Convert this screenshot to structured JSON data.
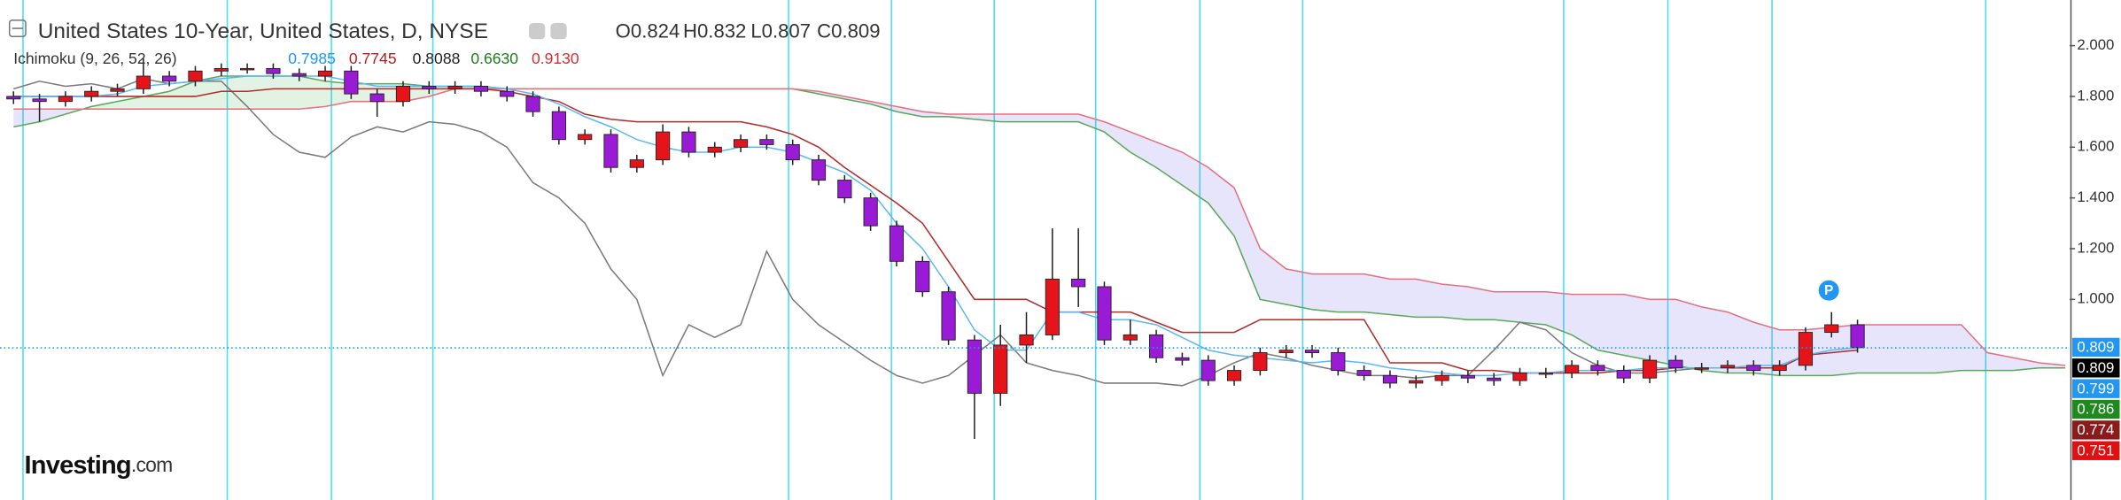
{
  "chart_data": {
    "type": "candlestick",
    "title": "United States 10-Year, United States, D, NYSE",
    "ohlc": [
      {
        "label": "O",
        "value": 0.824
      },
      {
        "label": "H",
        "value": 0.832
      },
      {
        "label": "L",
        "value": 0.807
      },
      {
        "label": "C",
        "value": 0.809
      }
    ],
    "indicator": "Ichimoku (9, 26, 52, 26)",
    "indicator_values": [
      {
        "value": 0.7985,
        "color": "#2196f3"
      },
      {
        "value": 0.7745,
        "color": "#b71c1c"
      },
      {
        "value": 0.8088,
        "color": "#222222"
      },
      {
        "value": {
          "value": 0.663,
          "label": "0.6630"
        },
        "color": "#1b7e1b"
      },
      {
        "value": {
          "value": 0.913,
          "label": "0.9130"
        },
        "color": "#d32f2f"
      }
    ],
    "logo": {
      "main": "Investing",
      "suffix": ".com"
    },
    "marker": "P",
    "ylim": [
      0.22,
      2.18
    ],
    "yticks": [
      {
        "value": 2,
        "label": "2.000"
      },
      {
        "value": 1.8,
        "label": "1.800"
      },
      {
        "value": 1.6,
        "label": "1.600"
      },
      {
        "value": 1.4,
        "label": "1.400"
      },
      {
        "value": 1.2,
        "label": "1.200"
      },
      {
        "value": 1,
        "label": "1.000"
      }
    ],
    "colors": {
      "up": "#e5141b",
      "down": "#9a1bd6"
    },
    "candles": {
      "open": [
        1.8,
        1.79,
        1.78,
        1.8,
        1.82,
        1.83,
        1.88,
        1.86,
        1.9,
        1.91,
        1.91,
        1.89,
        1.88,
        1.9,
        1.81,
        1.78,
        1.84,
        1.83,
        1.84,
        1.82,
        1.8,
        1.74,
        1.63,
        1.65,
        1.52,
        1.55,
        1.66,
        1.58,
        1.6,
        1.63,
        1.61,
        1.55,
        1.47,
        1.4,
        1.29,
        1.15,
        1.03,
        0.84,
        0.63,
        0.82,
        0.86,
        1.08,
        1.05,
        0.84,
        0.86,
        0.77,
        0.76,
        0.68,
        0.72,
        0.79,
        0.8,
        0.79,
        0.72,
        0.7,
        0.67,
        0.68,
        0.7,
        0.69,
        0.68,
        0.71,
        0.71,
        0.74,
        0.72,
        0.69,
        0.76,
        0.73,
        0.73,
        0.74,
        0.72,
        0.74,
        0.87,
        0.9
      ],
      "high": [
        1.82,
        1.81,
        1.82,
        1.84,
        1.85,
        1.95,
        1.9,
        1.92,
        1.93,
        1.93,
        1.93,
        1.91,
        1.92,
        1.92,
        1.83,
        1.86,
        1.86,
        1.86,
        1.86,
        1.84,
        1.82,
        1.76,
        1.67,
        1.67,
        1.57,
        1.69,
        1.68,
        1.62,
        1.65,
        1.65,
        1.63,
        1.57,
        1.49,
        1.42,
        1.31,
        1.17,
        1.05,
        0.86,
        0.9,
        0.95,
        1.28,
        1.28,
        1.07,
        0.92,
        0.88,
        0.79,
        0.78,
        0.74,
        0.81,
        0.82,
        0.82,
        0.81,
        0.74,
        0.72,
        0.7,
        0.72,
        0.72,
        0.71,
        0.73,
        0.73,
        0.76,
        0.76,
        0.74,
        0.78,
        0.78,
        0.75,
        0.76,
        0.76,
        0.76,
        0.89,
        0.95,
        0.92
      ],
      "low": [
        1.77,
        1.7,
        1.76,
        1.78,
        1.8,
        1.81,
        1.84,
        1.84,
        1.88,
        1.89,
        1.87,
        1.86,
        1.86,
        1.79,
        1.72,
        1.76,
        1.81,
        1.81,
        1.8,
        1.78,
        1.72,
        1.61,
        1.61,
        1.5,
        1.5,
        1.53,
        1.56,
        1.56,
        1.58,
        1.59,
        1.53,
        1.45,
        1.38,
        1.27,
        1.13,
        1.01,
        0.82,
        0.45,
        0.58,
        0.75,
        0.84,
        0.97,
        0.82,
        0.82,
        0.75,
        0.74,
        0.66,
        0.66,
        0.7,
        0.77,
        0.77,
        0.7,
        0.68,
        0.65,
        0.65,
        0.66,
        0.67,
        0.66,
        0.66,
        0.69,
        0.69,
        0.7,
        0.67,
        0.67,
        0.71,
        0.71,
        0.71,
        0.7,
        0.7,
        0.72,
        0.85,
        0.79
      ],
      "close": [
        1.79,
        1.78,
        1.8,
        1.82,
        1.83,
        1.88,
        1.86,
        1.9,
        1.91,
        1.91,
        1.89,
        1.88,
        1.9,
        1.81,
        1.78,
        1.84,
        1.83,
        1.84,
        1.82,
        1.8,
        1.74,
        1.63,
        1.65,
        1.52,
        1.55,
        1.66,
        1.58,
        1.6,
        1.63,
        1.61,
        1.55,
        1.47,
        1.4,
        1.29,
        1.15,
        1.03,
        0.84,
        0.63,
        0.82,
        0.86,
        1.08,
        1.05,
        0.84,
        0.86,
        0.77,
        0.76,
        0.68,
        0.72,
        0.79,
        0.8,
        0.79,
        0.72,
        0.7,
        0.67,
        0.68,
        0.7,
        0.69,
        0.68,
        0.71,
        0.71,
        0.74,
        0.72,
        0.69,
        0.76,
        0.73,
        0.73,
        0.74,
        0.72,
        0.74,
        0.87,
        0.9,
        0.81
      ]
    },
    "cloud_colors": [
      "rgba(76,175,80,0.16)",
      "rgba(110,100,235,0.17)"
    ],
    "cloud": [
      {
        "color": "#5aa85a",
        "values": [
          1.68,
          1.7,
          1.73,
          1.76,
          1.78,
          1.8,
          1.82,
          1.86,
          1.88,
          1.88,
          1.88,
          1.88,
          1.86,
          1.85,
          1.85,
          1.85,
          1.84,
          1.84,
          1.84,
          1.83,
          1.83,
          1.83,
          1.83,
          1.83,
          1.83,
          1.83,
          1.83,
          1.83,
          1.83,
          1.83,
          1.83,
          1.81,
          1.79,
          1.77,
          1.74,
          1.72,
          1.72,
          1.71,
          1.7,
          1.7,
          1.7,
          1.7,
          1.66,
          1.58,
          1.52,
          1.45,
          1.38,
          1.25,
          1.0,
          0.98,
          0.96,
          0.95,
          0.95,
          0.94,
          0.93,
          0.93,
          0.92,
          0.92,
          0.91,
          0.9,
          0.86,
          0.8,
          0.78,
          0.76,
          0.74,
          0.72,
          0.71,
          0.71,
          0.7,
          0.7,
          0.7,
          0.71,
          0.71,
          0.71,
          0.71,
          0.72,
          0.72,
          0.72,
          0.73,
          0.73
        ]
      },
      {
        "color": "#e5707e",
        "values": [
          1.75,
          1.75,
          1.75,
          1.75,
          1.75,
          1.75,
          1.75,
          1.75,
          1.75,
          1.75,
          1.75,
          1.75,
          1.76,
          1.78,
          1.78,
          1.78,
          1.8,
          1.83,
          1.83,
          1.83,
          1.83,
          1.83,
          1.83,
          1.83,
          1.83,
          1.83,
          1.83,
          1.83,
          1.83,
          1.83,
          1.83,
          1.82,
          1.8,
          1.78,
          1.76,
          1.74,
          1.73,
          1.73,
          1.73,
          1.73,
          1.73,
          1.73,
          1.7,
          1.66,
          1.62,
          1.58,
          1.52,
          1.44,
          1.2,
          1.12,
          1.1,
          1.1,
          1.1,
          1.08,
          1.08,
          1.06,
          1.05,
          1.03,
          1.03,
          1.03,
          1.02,
          1.02,
          1.02,
          1.0,
          1.0,
          0.97,
          0.95,
          0.91,
          0.88,
          0.88,
          0.89,
          0.9,
          0.9,
          0.9,
          0.9,
          0.9,
          0.79,
          0.77,
          0.75,
          0.74
        ]
      }
    ],
    "lines": [
      {
        "color": "#7a7a7a",
        "values": [
          1.83,
          1.86,
          1.84,
          1.85,
          1.83,
          1.87,
          1.85,
          1.86,
          1.86,
          1.76,
          1.65,
          1.58,
          1.56,
          1.64,
          1.68,
          1.66,
          1.7,
          1.69,
          1.66,
          1.6,
          1.46,
          1.4,
          1.3,
          1.12,
          1.0,
          0.7,
          0.9,
          0.85,
          0.9,
          1.19,
          1.0,
          0.9,
          0.83,
          0.76,
          0.7,
          0.67,
          0.7,
          0.78,
          0.86,
          0.75,
          0.72,
          0.7,
          0.67,
          0.67,
          0.67,
          0.66,
          0.7,
          0.75,
          0.79,
          0.77,
          0.74,
          0.72,
          0.7,
          0.7,
          0.69,
          0.7,
          0.7,
          0.8,
          0.91,
          0.88,
          0.79,
          0.74,
          0.71,
          0.71,
          0.72,
          0.73,
          0.73,
          0.73,
          null,
          null,
          null,
          null
        ]
      },
      {
        "color": "#b22a2a",
        "values": [
          1.8,
          1.8,
          1.8,
          1.8,
          1.8,
          1.8,
          1.8,
          1.8,
          1.82,
          1.82,
          1.83,
          1.83,
          1.83,
          1.83,
          1.83,
          1.83,
          1.83,
          1.83,
          1.83,
          1.82,
          1.8,
          1.78,
          1.73,
          1.71,
          1.7,
          1.7,
          1.7,
          1.7,
          1.7,
          1.68,
          1.65,
          1.6,
          1.52,
          1.45,
          1.38,
          1.3,
          1.15,
          1.0,
          1.0,
          1.0,
          0.95,
          0.95,
          0.95,
          0.95,
          0.91,
          0.87,
          0.87,
          0.87,
          0.92,
          0.92,
          0.92,
          0.92,
          0.92,
          0.75,
          0.75,
          0.75,
          0.72,
          0.72,
          0.71,
          0.71,
          0.71,
          0.71,
          0.72,
          0.72,
          0.73,
          0.73,
          0.73,
          0.73,
          0.73,
          0.78,
          0.79,
          0.8
        ]
      },
      {
        "color": "#5bb8f5",
        "values": [
          1.8,
          1.8,
          1.8,
          1.8,
          1.81,
          1.84,
          1.85,
          1.86,
          1.87,
          1.88,
          1.88,
          1.88,
          1.88,
          1.86,
          1.84,
          1.84,
          1.84,
          1.84,
          1.84,
          1.83,
          1.81,
          1.77,
          1.72,
          1.68,
          1.63,
          1.6,
          1.58,
          1.58,
          1.6,
          1.6,
          1.58,
          1.54,
          1.5,
          1.43,
          1.3,
          1.2,
          1.05,
          0.88,
          0.8,
          0.8,
          0.95,
          0.95,
          0.92,
          0.92,
          0.9,
          0.85,
          0.8,
          0.78,
          0.77,
          0.76,
          0.75,
          0.76,
          0.75,
          0.73,
          0.72,
          0.71,
          0.7,
          0.7,
          0.71,
          0.71,
          0.72,
          0.72,
          0.72,
          0.73,
          0.73,
          0.73,
          0.73,
          0.74,
          0.74,
          0.78,
          0.8,
          0.81
        ]
      }
    ],
    "price_labels": [
      {
        "value": 0.809,
        "color": "#2196f3"
      },
      {
        "value": 0.809,
        "color": "#000000"
      },
      {
        "value": 0.799,
        "color": "#2196f3"
      },
      {
        "value": 0.786,
        "color": "#1e8a1e"
      },
      {
        "value": 0.774,
        "color": "#8b1a1a"
      },
      {
        "value": 0.751,
        "color": "#e01010"
      }
    ]
  }
}
